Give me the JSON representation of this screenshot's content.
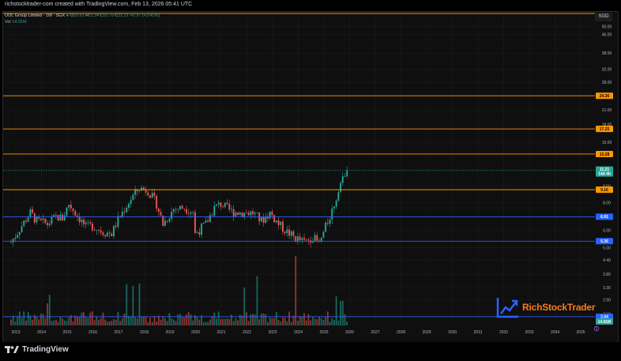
{
  "header": {
    "credit": "richstocktrader-com created with TradingView.com, Feb 13, 2026 05:41 UTC"
  },
  "legend": {
    "symbol": "UOL Group Limited · 1M · SGX",
    "open_label": "O",
    "open": "10.91",
    "high_label": "H",
    "high": "11.34",
    "low_label": "L",
    "low": "10.75",
    "close_label": "C",
    "close": "11.21",
    "change": "+0.37 (+3.41%)",
    "vol_label": "Vol",
    "vol": "14.91M"
  },
  "currency": "SGD",
  "chart_data": {
    "type": "candlestick",
    "title": "UOL Group Limited · 1M · SGX",
    "y_scale": "log",
    "ylim": [
      2.44,
      50.0
    ],
    "y_ticks": [
      "50.00",
      "46.00",
      "38.00",
      "32.00",
      "28.00",
      "24.00",
      "21.00",
      "18.00",
      "15.00",
      "11.00",
      "9.50",
      "8.00",
      "6.00",
      "5.00",
      "4.40",
      "3.80",
      "3.30",
      "2.90",
      "2.50"
    ],
    "x_ticks": [
      "2013",
      "2014",
      "2015",
      "2016",
      "2017",
      "2018",
      "2019",
      "2020",
      "2021",
      "2022",
      "2023",
      "2024",
      "2025",
      "2026",
      "2027",
      "2028",
      "2029",
      "2030",
      "2031",
      "2032",
      "2033",
      "2034",
      "2035"
    ],
    "horizontal_levels": [
      {
        "value": 54.0,
        "label": "",
        "color": "#ff9800"
      },
      {
        "value": 24.36,
        "label": "24.36",
        "color": "#ff9800"
      },
      {
        "value": 17.25,
        "label": "17.25",
        "color": "#ff9800"
      },
      {
        "value": 13.28,
        "label": "13.28",
        "color": "#ff9800"
      },
      {
        "value": 9.16,
        "label": "9.16",
        "color": "#ff9800"
      },
      {
        "value": 6.91,
        "label": "6.91",
        "color": "#2962ff"
      },
      {
        "value": 5.36,
        "label": "5.36",
        "color": "#2962ff"
      },
      {
        "value": 2.44,
        "label": "2.44",
        "color": "#2962ff"
      }
    ],
    "last_price": {
      "value": 11.21,
      "label": "11.21",
      "countdown": "14d 4h"
    },
    "volume_label": "14.91M",
    "series_price_path": [
      [
        "2013-01",
        5.3
      ],
      [
        "2013-06",
        6.3
      ],
      [
        "2013-10",
        7.2
      ],
      [
        "2014-01",
        6.6
      ],
      [
        "2014-06",
        6.4
      ],
      [
        "2014-10",
        6.9
      ],
      [
        "2015-01",
        6.8
      ],
      [
        "2015-04",
        7.9
      ],
      [
        "2015-08",
        7.0
      ],
      [
        "2015-12",
        6.2
      ],
      [
        "2016-03",
        6.3
      ],
      [
        "2016-08",
        5.9
      ],
      [
        "2016-12",
        5.8
      ],
      [
        "2017-03",
        6.7
      ],
      [
        "2017-06",
        7.5
      ],
      [
        "2017-10",
        8.6
      ],
      [
        "2018-01",
        9.3
      ],
      [
        "2018-05",
        9.1
      ],
      [
        "2018-09",
        7.9
      ],
      [
        "2018-12",
        6.4
      ],
      [
        "2019-05",
        7.5
      ],
      [
        "2019-10",
        7.6
      ],
      [
        "2020-02",
        7.3
      ],
      [
        "2020-03",
        5.8
      ],
      [
        "2020-08",
        6.4
      ],
      [
        "2020-12",
        7.6
      ],
      [
        "2021-03",
        7.9
      ],
      [
        "2021-08",
        7.3
      ],
      [
        "2022-01",
        7.2
      ],
      [
        "2022-06",
        7.2
      ],
      [
        "2022-10",
        6.6
      ],
      [
        "2023-02",
        7.2
      ],
      [
        "2023-06",
        6.4
      ],
      [
        "2023-10",
        5.9
      ],
      [
        "2024-01",
        5.6
      ],
      [
        "2024-06",
        5.3
      ],
      [
        "2024-10",
        5.6
      ],
      [
        "2025-01",
        5.2
      ],
      [
        "2025-04",
        6.2
      ],
      [
        "2025-07",
        7.4
      ],
      [
        "2025-10",
        9.0
      ],
      [
        "2025-12",
        10.4
      ],
      [
        "2026-02",
        11.21
      ]
    ]
  },
  "watermark": "RichStockTrader",
  "footer": {
    "brand": "TradingView"
  }
}
